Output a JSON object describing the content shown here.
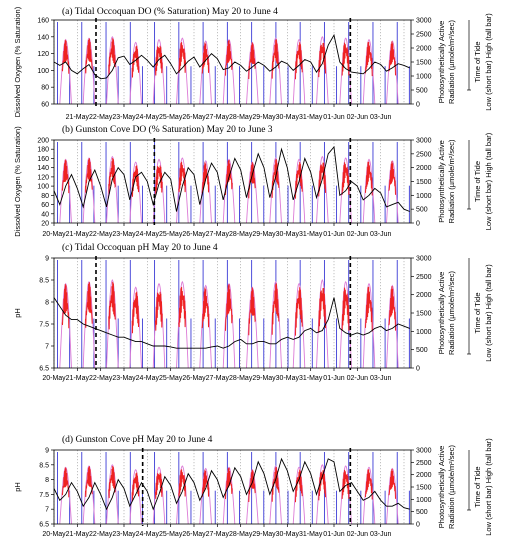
{
  "chart_data": [
    {
      "type": "line",
      "title": "(a)  Tidal Occoquan DO (% Saturation) May 20 to June 4",
      "ylabel": "Dissolved Oxygen (% Saturation)",
      "ylim": [
        60,
        160
      ],
      "yticks": [
        60,
        80,
        100,
        120,
        140,
        160
      ],
      "y2label_line1": "Photosynthetically Active",
      "y2label_line2": "Radiation (µmole/m²/sec)",
      "y2lim": [
        0,
        3000
      ],
      "y2ticks": [
        0,
        500,
        1000,
        1500,
        2000,
        2500,
        3000
      ],
      "tide_label_line1": "Time of Tide",
      "tide_label_line2": "Low (short bar)   High (tall bar)",
      "x_ticks": [
        "21-May",
        "22-May",
        "23-May",
        "24-May",
        "25-May",
        "26-May",
        "27-May",
        "28-May",
        "29-May",
        "30-May",
        "31-May",
        "01-Jun",
        "02-Jun",
        "03-Jun"
      ],
      "xlim_days": [
        20.0,
        35.3
      ],
      "markers_days": [
        21.8,
        32.7
      ],
      "series": [
        {
          "x": [
            20.0,
            20.25,
            20.5,
            20.75,
            21.0,
            21.25,
            21.5,
            21.75,
            22.0,
            22.25,
            22.5,
            22.75,
            23.0,
            23.25,
            23.5,
            23.75,
            24.0,
            24.25,
            24.5,
            24.75,
            25.0,
            25.25,
            25.5,
            25.75,
            26.0,
            26.25,
            26.5,
            26.75,
            27.0,
            27.25,
            27.5,
            27.75,
            28.0,
            28.25,
            28.5,
            28.75,
            29.0,
            29.25,
            29.5,
            29.75,
            30.0,
            30.25,
            30.5,
            30.75,
            31.0,
            31.25,
            31.5,
            31.75,
            32.0,
            32.25,
            32.5,
            32.75,
            33.0,
            33.25,
            33.5,
            33.75,
            34.0,
            34.25,
            34.5,
            34.75,
            35.0,
            35.25
          ],
          "values": [
            110,
            106,
            110,
            100,
            96,
            102,
            107,
            95,
            90,
            91,
            100,
            115,
            117,
            107,
            112,
            118,
            112,
            104,
            113,
            118,
            108,
            96,
            103,
            111,
            116,
            104,
            112,
            120,
            114,
            101,
            103,
            110,
            106,
            99,
            104,
            110,
            106,
            99,
            104,
            111,
            108,
            100,
            106,
            113,
            110,
            98,
            108,
            130,
            142,
            110,
            102,
            98,
            97,
            96,
            102,
            110,
            107,
            99,
            103,
            108,
            106,
            103
          ]
        }
      ]
    },
    {
      "type": "line",
      "title": "(b)  Gunston Cove DO (% Saturation) May 20 to June 3",
      "ylabel": "Dissolved Oxygen (% Saturation)",
      "ylim": [
        20,
        200
      ],
      "yticks": [
        20,
        40,
        60,
        80,
        100,
        120,
        140,
        160,
        180,
        200
      ],
      "y2label_line1": "Photosynthetically Active",
      "y2label_line2": "Radiation (µmole/m²/sec)",
      "y2lim": [
        0,
        3000
      ],
      "y2ticks": [
        0,
        500,
        1000,
        1500,
        2000,
        2500,
        3000
      ],
      "tide_label_line1": "Time of Tide",
      "tide_label_line2": "Low (short bar)   High (tall bar)",
      "x_ticks": [
        "20-May",
        "21-May",
        "22-May",
        "23-May",
        "24-May",
        "25-May",
        "26-May",
        "27-May",
        "28-May",
        "29-May",
        "30-May",
        "31-May",
        "01-Jun",
        "02-Jun",
        "03-Jun"
      ],
      "xlim_days": [
        20.0,
        35.3
      ],
      "markers_days": [
        24.3,
        32.7
      ],
      "series": [
        {
          "x": [
            20.0,
            20.25,
            20.5,
            20.75,
            21.0,
            21.25,
            21.5,
            21.75,
            22.0,
            22.25,
            22.5,
            22.75,
            23.0,
            23.25,
            23.5,
            23.75,
            24.0,
            24.25,
            24.5,
            24.75,
            25.0,
            25.25,
            25.5,
            25.75,
            26.0,
            26.25,
            26.5,
            26.75,
            27.0,
            27.25,
            27.5,
            27.75,
            28.0,
            28.25,
            28.5,
            28.75,
            29.0,
            29.25,
            29.5,
            29.75,
            30.0,
            30.25,
            30.5,
            30.75,
            31.0,
            31.25,
            31.5,
            31.75,
            32.0,
            32.25,
            32.5,
            32.75,
            33.0,
            33.25,
            33.5,
            33.75,
            34.0,
            34.25,
            34.5,
            34.75,
            35.0,
            35.25
          ],
          "values": [
            90,
            60,
            100,
            125,
            95,
            55,
            110,
            135,
            100,
            55,
            115,
            140,
            125,
            70,
            120,
            130,
            110,
            60,
            105,
            130,
            115,
            45,
            100,
            140,
            125,
            60,
            115,
            150,
            130,
            70,
            120,
            160,
            135,
            75,
            125,
            170,
            140,
            75,
            120,
            180,
            140,
            70,
            110,
            160,
            130,
            75,
            115,
            170,
            185,
            80,
            90,
            110,
            100,
            70,
            80,
            95,
            85,
            55,
            60,
            65,
            50,
            45
          ]
        }
      ]
    },
    {
      "type": "line",
      "title": "(c)  Tidal Occoquan pH May 20 to June 4",
      "ylabel": "pH",
      "ylim": [
        6.5,
        9.0
      ],
      "yticks": [
        6.5,
        7.0,
        7.5,
        8.0,
        8.5,
        9.0
      ],
      "y2label_line1": "Photosynthetically Active",
      "y2label_line2": "Radiation (µmole/m²/sec)",
      "y2lim": [
        0,
        3000
      ],
      "y2ticks": [
        0,
        500,
        1000,
        1500,
        2000,
        2500,
        3000
      ],
      "tide_label_line1": "Time of Tide",
      "tide_label_line2": "Low (short bar)   High (tall bar)",
      "x_ticks": [
        "20-May",
        "21-May",
        "22-May",
        "23-May",
        "24-May",
        "25-May",
        "26-May",
        "27-May",
        "28-May",
        "29-May",
        "30-May",
        "31-May",
        "01-Jun",
        "02-Jun",
        "03-Jun"
      ],
      "xlim_days": [
        20.0,
        35.3
      ],
      "markers_days": [
        21.8,
        32.7
      ],
      "series": [
        {
          "x": [
            20.0,
            20.25,
            20.5,
            20.75,
            21.0,
            21.25,
            21.5,
            21.75,
            22.0,
            22.25,
            22.5,
            22.75,
            23.0,
            23.25,
            23.5,
            23.75,
            24.0,
            24.25,
            24.5,
            24.75,
            25.0,
            25.25,
            25.5,
            25.75,
            26.0,
            26.25,
            26.5,
            26.75,
            27.0,
            27.25,
            27.5,
            27.75,
            28.0,
            28.25,
            28.5,
            28.75,
            29.0,
            29.25,
            29.5,
            29.75,
            30.0,
            30.25,
            30.5,
            30.75,
            31.0,
            31.25,
            31.5,
            31.75,
            32.0,
            32.25,
            32.5,
            32.75,
            33.0,
            33.25,
            33.5,
            33.75,
            34.0,
            34.25,
            34.5,
            34.75,
            35.0,
            35.25
          ],
          "values": [
            8.1,
            7.9,
            7.7,
            7.6,
            7.6,
            7.5,
            7.45,
            7.4,
            7.35,
            7.3,
            7.25,
            7.2,
            7.2,
            7.15,
            7.1,
            7.1,
            7.05,
            7.0,
            7.0,
            7.0,
            6.98,
            6.95,
            6.95,
            6.95,
            6.95,
            6.95,
            6.95,
            6.98,
            7.0,
            6.95,
            7.0,
            7.1,
            7.15,
            7.05,
            7.05,
            7.1,
            7.1,
            7.05,
            7.05,
            7.15,
            7.2,
            7.15,
            7.2,
            7.35,
            7.4,
            7.3,
            7.35,
            7.6,
            8.1,
            7.4,
            7.3,
            7.25,
            7.3,
            7.25,
            7.3,
            7.4,
            7.45,
            7.35,
            7.4,
            7.5,
            7.45,
            7.4
          ]
        }
      ]
    },
    {
      "type": "line",
      "title": "(d)  Gunston Cove pH May 20 to June 4",
      "ylabel": "pH",
      "ylim": [
        6.5,
        9.0
      ],
      "yticks": [
        6.5,
        7.0,
        7.5,
        8.0,
        8.5,
        9.0
      ],
      "y2label_line1": "Photosynthetically Active",
      "y2label_line2": "Radiation (µmole/m²/sec)",
      "y2lim": [
        0,
        3000
      ],
      "y2ticks": [
        0,
        500,
        1000,
        1500,
        2000,
        2500,
        3000
      ],
      "tide_label_line1": "Time of Tide",
      "tide_label_line2": "Low (short bar)   High (tall bar)",
      "x_ticks": [
        "20-May",
        "21-May",
        "22-May",
        "23-May",
        "24-May",
        "25-May",
        "26-May",
        "27-May",
        "28-May",
        "29-May",
        "30-May",
        "31-May",
        "01-Jun",
        "02-Jun",
        "03-Jun"
      ],
      "xlim_days": [
        20.0,
        35.3
      ],
      "markers_days": [
        23.8,
        32.7
      ],
      "series": [
        {
          "x": [
            20.0,
            20.25,
            20.5,
            20.75,
            21.0,
            21.25,
            21.5,
            21.75,
            22.0,
            22.25,
            22.5,
            22.75,
            23.0,
            23.25,
            23.5,
            23.75,
            24.0,
            24.25,
            24.5,
            24.75,
            25.0,
            25.25,
            25.5,
            25.75,
            26.0,
            26.25,
            26.5,
            26.75,
            27.0,
            27.25,
            27.5,
            27.75,
            28.0,
            28.25,
            28.5,
            28.75,
            29.0,
            29.25,
            29.5,
            29.75,
            30.0,
            30.25,
            30.5,
            30.75,
            31.0,
            31.25,
            31.5,
            31.75,
            32.0,
            32.25,
            32.5,
            32.75,
            33.0,
            33.25,
            33.5,
            33.75,
            34.0,
            34.25,
            34.5,
            34.75,
            35.0,
            35.25
          ],
          "values": [
            7.7,
            7.3,
            7.5,
            7.9,
            7.6,
            7.1,
            7.4,
            7.9,
            7.5,
            7.0,
            7.4,
            8.0,
            7.7,
            7.1,
            7.5,
            7.9,
            7.6,
            7.0,
            7.5,
            8.1,
            7.8,
            7.2,
            7.6,
            8.2,
            7.9,
            7.3,
            7.7,
            8.3,
            8.0,
            7.4,
            7.8,
            8.4,
            8.1,
            7.5,
            7.9,
            8.6,
            8.2,
            7.5,
            8.0,
            8.7,
            8.3,
            7.6,
            8.0,
            8.6,
            8.2,
            7.5,
            8.1,
            8.7,
            8.6,
            7.6,
            7.8,
            7.9,
            7.6,
            7.3,
            7.4,
            7.6,
            7.3,
            7.1,
            7.1,
            7.2,
            7.05,
            7.0
          ]
        }
      ]
    }
  ],
  "colors": {
    "series": "#000000",
    "par": "#ee2222",
    "par_light": "#f6a3a3",
    "tide": "#3b3bd6",
    "tide_light": "#c8c8ee",
    "pink_curve": "#dc7bd6",
    "marker": "#000000",
    "axis": "#000000",
    "grid_dotted": "#9a9a9a"
  }
}
